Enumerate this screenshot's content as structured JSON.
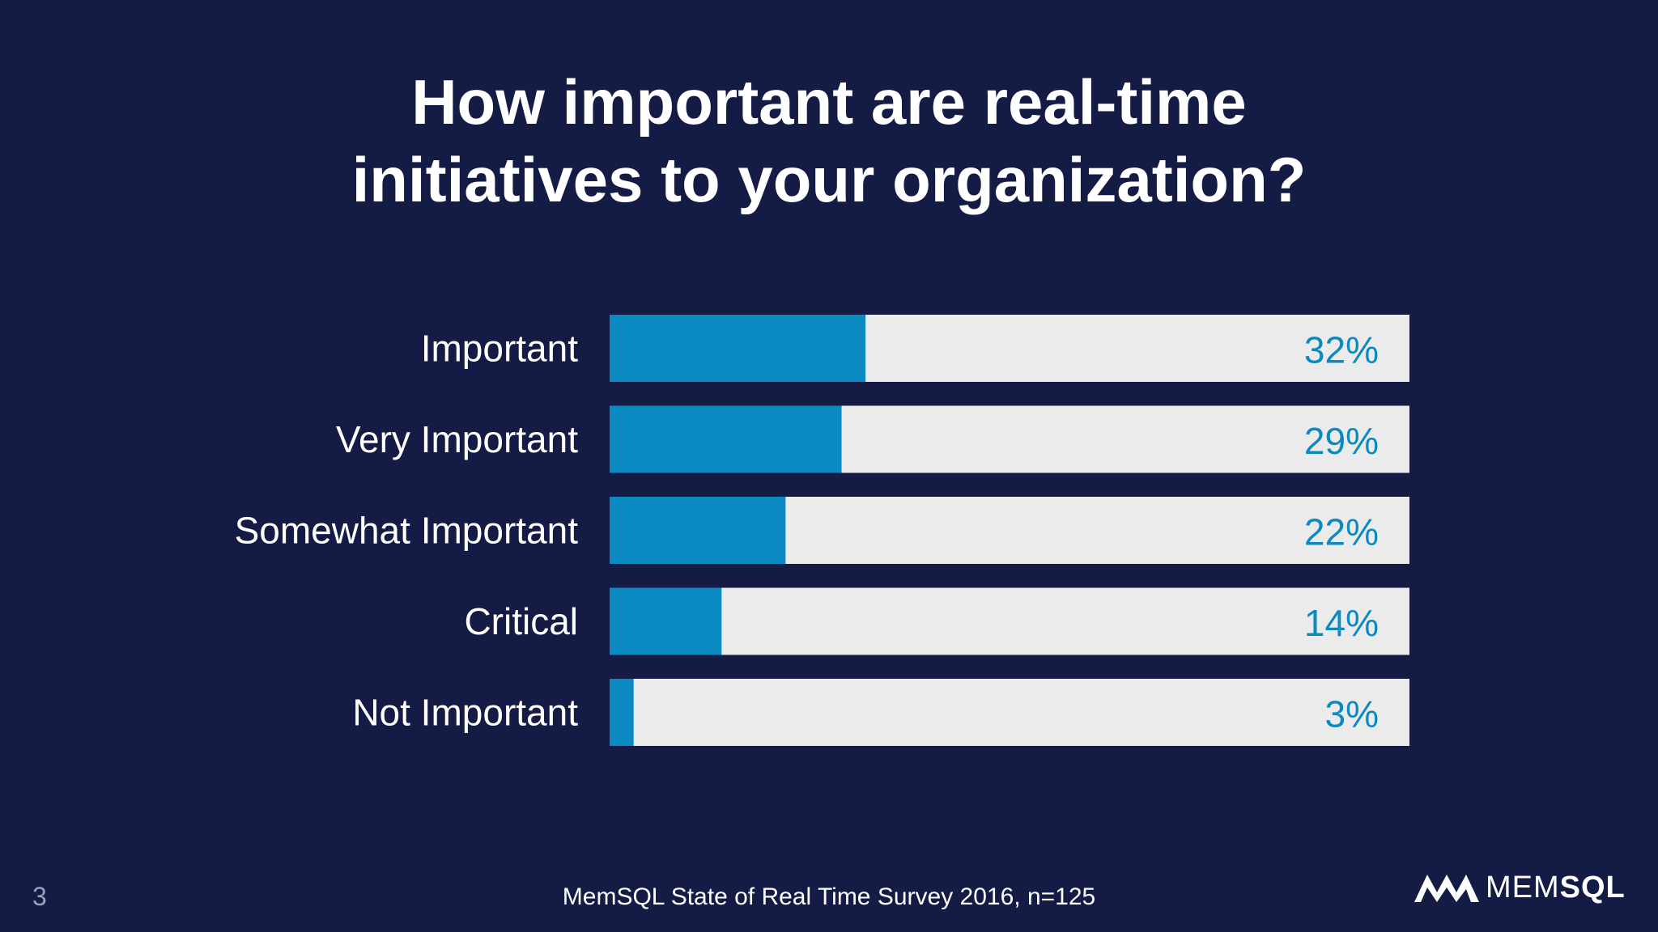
{
  "title_lines": [
    "How important are real-time",
    "initiatives to your organization?"
  ],
  "footer": {
    "page_number": "3",
    "source": "MemSQL State of Real Time Survey 2016, n=125",
    "logo_thin": "MEM",
    "logo_bold": "SQL"
  },
  "colors": {
    "background": "#141b45",
    "bar_fill": "#0a8ac1",
    "bar_track": "#ecebec",
    "value_label": "#0a8ac1",
    "text": "#ffffff"
  },
  "chart_data": {
    "type": "bar",
    "orientation": "horizontal",
    "categories": [
      "Important",
      "Very Important",
      "Somewhat Important",
      "Critical",
      "Not Important"
    ],
    "values": [
      32,
      29,
      22,
      14,
      3
    ],
    "value_labels": [
      "32%",
      "29%",
      "22%",
      "14%",
      "3%"
    ],
    "xlim": [
      0,
      100
    ],
    "grid": false,
    "legend": "none"
  }
}
